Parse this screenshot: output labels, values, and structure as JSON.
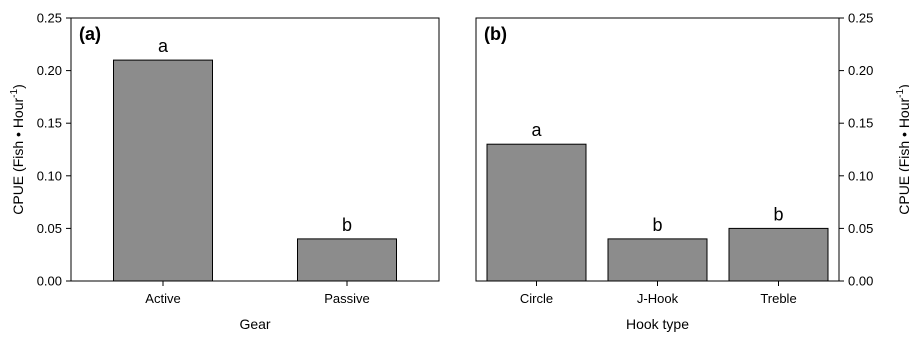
{
  "chart_data": [
    {
      "type": "bar",
      "panel_label": "(a)",
      "categories": [
        "Active",
        "Passive"
      ],
      "values": [
        0.21,
        0.04
      ],
      "significance_letters": [
        "a",
        "b"
      ],
      "xlabel": "Gear",
      "ylabel": "CPUE (Fish • Hour",
      "ylabel_sup": "-1",
      "ylabel_close": ")",
      "ylim": [
        0,
        0.25
      ],
      "yticks": [
        "0.00",
        "0.05",
        "0.10",
        "0.15",
        "0.20",
        "0.25"
      ],
      "y_axis_side": "left",
      "bar_color": "#8c8c8c",
      "grid": false
    },
    {
      "type": "bar",
      "panel_label": "(b)",
      "categories": [
        "Circle",
        "J-Hook",
        "Treble"
      ],
      "values": [
        0.13,
        0.04,
        0.05
      ],
      "significance_letters": [
        "a",
        "b",
        "b"
      ],
      "xlabel": "Hook type",
      "ylabel": "CPUE (Fish • Hour",
      "ylabel_sup": "-1",
      "ylabel_close": ")",
      "ylim": [
        0,
        0.25
      ],
      "yticks": [
        "0.00",
        "0.05",
        "0.10",
        "0.15",
        "0.20",
        "0.25"
      ],
      "y_axis_side": "right",
      "bar_color": "#8c8c8c",
      "grid": false
    }
  ]
}
